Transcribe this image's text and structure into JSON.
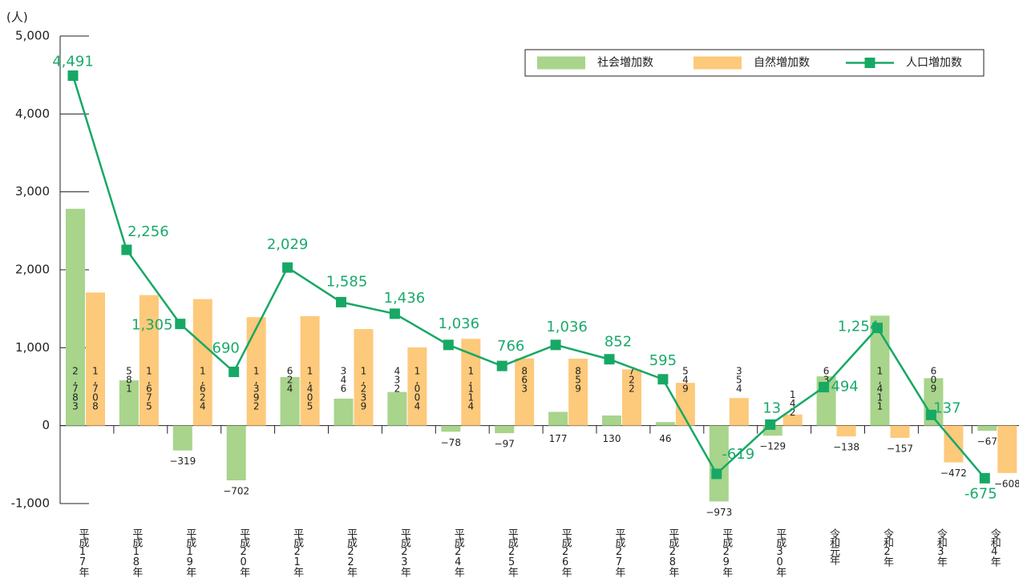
{
  "chart_data": {
    "type": "bar_line",
    "unit_label": "(人)",
    "categories": [
      "平成17年",
      "平成18年",
      "平成19年",
      "平成20年",
      "平成21年",
      "平成22年",
      "平成23年",
      "平成24年",
      "平成25年",
      "平成26年",
      "平成27年",
      "平成28年",
      "平成29年",
      "平成30年",
      "令和元年",
      "令和2年",
      "令和3年",
      "令和4年"
    ],
    "series": [
      {
        "name": "社会増加数",
        "kind": "bar",
        "color": "#a8d48c",
        "values": [
          2783,
          581,
          -319,
          -702,
          624,
          346,
          432,
          -78,
          -97,
          177,
          130,
          46,
          -973,
          -129,
          632,
          1411,
          609,
          -67
        ],
        "value_labels": [
          "2,783",
          "581",
          "−319",
          "−702",
          "624",
          "346",
          "432",
          "−78",
          "−97",
          "177",
          "130",
          "46",
          "−973",
          "−129",
          "632",
          "1,411",
          "609",
          "−67"
        ]
      },
      {
        "name": "自然増加数",
        "kind": "bar",
        "color": "#fdc97b",
        "values": [
          1708,
          1675,
          1624,
          1392,
          1405,
          1239,
          1004,
          1114,
          863,
          859,
          722,
          549,
          354,
          142,
          -138,
          -157,
          -472,
          -608
        ],
        "value_labels": [
          "1,708",
          "1,675",
          "1,624",
          "1,392",
          "1,405",
          "1,239",
          "1,004",
          "1,114",
          "863",
          "859",
          "722",
          "549",
          "354",
          "142",
          "−138",
          "−157",
          "−472",
          "−608"
        ]
      },
      {
        "name": "人口増加数",
        "kind": "line",
        "color": "#17a865",
        "values": [
          4491,
          2256,
          1305,
          690,
          2029,
          1585,
          1436,
          1036,
          766,
          1036,
          852,
          595,
          -619,
          13,
          494,
          1254,
          137,
          -675
        ],
        "value_labels": [
          "4,491",
          "2,256",
          "1,305",
          "690",
          "2,029",
          "1,585",
          "1,436",
          "1,036",
          "766",
          "1,036",
          "852",
          "595",
          "-619",
          "13",
          "494",
          "1,254",
          "137",
          "-675"
        ]
      }
    ],
    "ylim": [
      -1000,
      5000
    ],
    "yticks": [
      {
        "value": -1000,
        "label": "-1,000"
      },
      0,
      {
        "value": 1000,
        "label": "1,000"
      },
      {
        "value": 2000,
        "label": "2,000"
      },
      {
        "value": 3000,
        "label": "3,000"
      },
      {
        "value": 4000,
        "label": "4,000"
      },
      {
        "value": 5000,
        "label": "5,000"
      }
    ],
    "legend": "top-right"
  }
}
